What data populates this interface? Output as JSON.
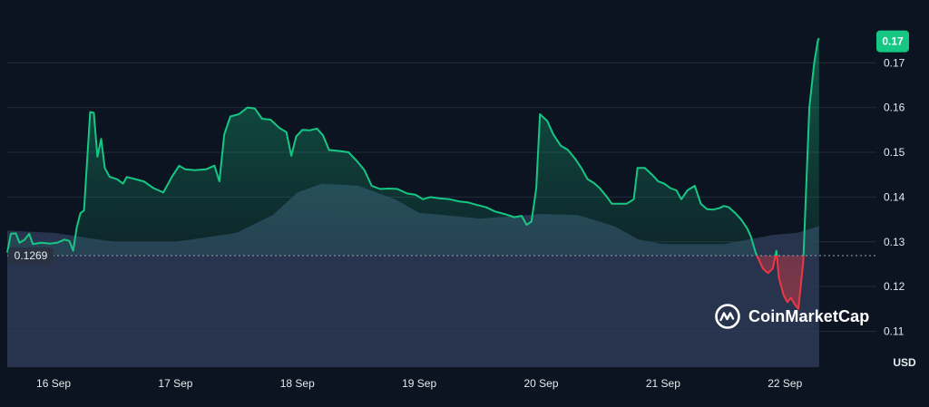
{
  "brand": {
    "name": "CoinMarketCap"
  },
  "colors": {
    "background": "#0d1421",
    "grid": "#222b3a",
    "up_line": "#16c784",
    "down_line": "#ea3943",
    "volume": "#2e3956",
    "baseline_dots": "#9aa3b2",
    "badge_bg": "#16c784",
    "base_badge_bg": "#2a3140"
  },
  "chart_data": {
    "type": "line",
    "title": "",
    "xlabel": "",
    "ylabel": "USD",
    "ylim": [
      0.102,
      0.182
    ],
    "xlim": [
      15.62,
      22.75
    ],
    "x_ticks": [
      {
        "x": 16.0,
        "label": "16 Sep"
      },
      {
        "x": 17.0,
        "label": "17 Sep"
      },
      {
        "x": 18.0,
        "label": "18 Sep"
      },
      {
        "x": 19.0,
        "label": "19 Sep"
      },
      {
        "x": 20.0,
        "label": "20 Sep"
      },
      {
        "x": 21.0,
        "label": "21 Sep"
      },
      {
        "x": 22.0,
        "label": "22 Sep"
      }
    ],
    "y_ticks": [
      0.11,
      0.12,
      0.13,
      0.14,
      0.15,
      0.16,
      0.17
    ],
    "y_tick_labels": [
      "0.11",
      "0.12",
      "0.13",
      "0.14",
      "0.15",
      "0.16",
      "0.17"
    ],
    "baseline": {
      "value": 0.1269,
      "label": "0.1269"
    },
    "current_price": {
      "value": 0.175,
      "label": "0.17"
    },
    "grid": "horizontal",
    "series": [
      {
        "kind": "price",
        "points": [
          [
            15.62,
            0.1276
          ],
          [
            15.65,
            0.1318
          ],
          [
            15.69,
            0.1319
          ],
          [
            15.72,
            0.1298
          ],
          [
            15.76,
            0.1304
          ],
          [
            15.8,
            0.1318
          ],
          [
            15.83,
            0.1295
          ],
          [
            15.9,
            0.1298
          ],
          [
            15.97,
            0.1296
          ],
          [
            16.03,
            0.1298
          ],
          [
            16.09,
            0.1305
          ],
          [
            16.13,
            0.1302
          ],
          [
            16.16,
            0.128
          ],
          [
            16.19,
            0.1332
          ],
          [
            16.22,
            0.1364
          ],
          [
            16.25,
            0.137
          ],
          [
            16.3,
            0.159
          ],
          [
            16.33,
            0.1588
          ],
          [
            16.36,
            0.149
          ],
          [
            16.39,
            0.153
          ],
          [
            16.42,
            0.1465
          ],
          [
            16.46,
            0.1445
          ],
          [
            16.52,
            0.144
          ],
          [
            16.57,
            0.143
          ],
          [
            16.6,
            0.1445
          ],
          [
            16.67,
            0.144
          ],
          [
            16.74,
            0.1435
          ],
          [
            16.82,
            0.142
          ],
          [
            16.9,
            0.141
          ],
          [
            16.97,
            0.1445
          ],
          [
            17.03,
            0.147
          ],
          [
            17.08,
            0.1462
          ],
          [
            17.16,
            0.146
          ],
          [
            17.25,
            0.1462
          ],
          [
            17.32,
            0.147
          ],
          [
            17.36,
            0.1435
          ],
          [
            17.4,
            0.154
          ],
          [
            17.45,
            0.158
          ],
          [
            17.52,
            0.1585
          ],
          [
            17.59,
            0.16
          ],
          [
            17.65,
            0.1598
          ],
          [
            17.71,
            0.1575
          ],
          [
            17.78,
            0.1573
          ],
          [
            17.85,
            0.1555
          ],
          [
            17.91,
            0.1545
          ],
          [
            17.95,
            0.1492
          ],
          [
            17.99,
            0.1535
          ],
          [
            18.04,
            0.155
          ],
          [
            18.1,
            0.1549
          ],
          [
            18.16,
            0.1553
          ],
          [
            18.21,
            0.1538
          ],
          [
            18.26,
            0.1505
          ],
          [
            18.34,
            0.1503
          ],
          [
            18.42,
            0.15
          ],
          [
            18.49,
            0.148
          ],
          [
            18.55,
            0.146
          ],
          [
            18.61,
            0.1425
          ],
          [
            18.68,
            0.1418
          ],
          [
            18.75,
            0.1419
          ],
          [
            18.82,
            0.1418
          ],
          [
            18.9,
            0.1408
          ],
          [
            18.97,
            0.1405
          ],
          [
            19.03,
            0.1395
          ],
          [
            19.09,
            0.14
          ],
          [
            19.17,
            0.1397
          ],
          [
            19.25,
            0.1395
          ],
          [
            19.33,
            0.139
          ],
          [
            19.4,
            0.1388
          ],
          [
            19.48,
            0.1382
          ],
          [
            19.55,
            0.1377
          ],
          [
            19.62,
            0.1368
          ],
          [
            19.7,
            0.1362
          ],
          [
            19.78,
            0.1355
          ],
          [
            19.84,
            0.1358
          ],
          [
            19.88,
            0.1338
          ],
          [
            19.92,
            0.1345
          ],
          [
            19.96,
            0.142
          ],
          [
            19.99,
            0.1585
          ],
          [
            20.05,
            0.157
          ],
          [
            20.1,
            0.154
          ],
          [
            20.16,
            0.1515
          ],
          [
            20.22,
            0.1505
          ],
          [
            20.28,
            0.1485
          ],
          [
            20.33,
            0.1465
          ],
          [
            20.38,
            0.144
          ],
          [
            20.43,
            0.1432
          ],
          [
            20.48,
            0.142
          ],
          [
            20.54,
            0.14
          ],
          [
            20.58,
            0.1385
          ],
          [
            20.64,
            0.1385
          ],
          [
            20.7,
            0.1385
          ],
          [
            20.76,
            0.1395
          ],
          [
            20.79,
            0.1465
          ],
          [
            20.85,
            0.1465
          ],
          [
            20.91,
            0.145
          ],
          [
            20.96,
            0.1435
          ],
          [
            21.01,
            0.143
          ],
          [
            21.06,
            0.142
          ],
          [
            21.11,
            0.1415
          ],
          [
            21.15,
            0.1395
          ],
          [
            21.2,
            0.1415
          ],
          [
            21.26,
            0.1425
          ],
          [
            21.31,
            0.1385
          ],
          [
            21.36,
            0.1373
          ],
          [
            21.41,
            0.1372
          ],
          [
            21.46,
            0.1375
          ],
          [
            21.5,
            0.138
          ],
          [
            21.54,
            0.1377
          ],
          [
            21.59,
            0.1365
          ],
          [
            21.64,
            0.135
          ],
          [
            21.69,
            0.133
          ],
          [
            21.72,
            0.1312
          ],
          [
            21.76,
            0.1275
          ],
          [
            21.82,
            0.124
          ],
          [
            21.86,
            0.123
          ],
          [
            21.9,
            0.124
          ],
          [
            21.93,
            0.128
          ],
          [
            21.95,
            0.122
          ],
          [
            21.99,
            0.118
          ],
          [
            22.02,
            0.1165
          ],
          [
            22.05,
            0.1175
          ],
          [
            22.08,
            0.116
          ],
          [
            22.11,
            0.115
          ],
          [
            22.15,
            0.1255
          ],
          [
            22.2,
            0.16
          ],
          [
            22.24,
            0.17
          ],
          [
            22.27,
            0.175
          ],
          [
            22.28,
            0.1755
          ]
        ]
      },
      {
        "kind": "volume",
        "points": [
          [
            15.62,
            0.1325
          ],
          [
            16.0,
            0.132
          ],
          [
            16.5,
            0.13
          ],
          [
            17.0,
            0.13
          ],
          [
            17.5,
            0.132
          ],
          [
            17.8,
            0.136
          ],
          [
            18.0,
            0.141
          ],
          [
            18.2,
            0.143
          ],
          [
            18.5,
            0.1425
          ],
          [
            18.8,
            0.1395
          ],
          [
            19.0,
            0.1365
          ],
          [
            19.5,
            0.1352
          ],
          [
            20.0,
            0.1362
          ],
          [
            20.3,
            0.136
          ],
          [
            20.6,
            0.1335
          ],
          [
            20.8,
            0.1305
          ],
          [
            21.0,
            0.1295
          ],
          [
            21.5,
            0.1295
          ],
          [
            21.9,
            0.1315
          ],
          [
            22.1,
            0.132
          ],
          [
            22.28,
            0.1335
          ]
        ]
      }
    ]
  }
}
